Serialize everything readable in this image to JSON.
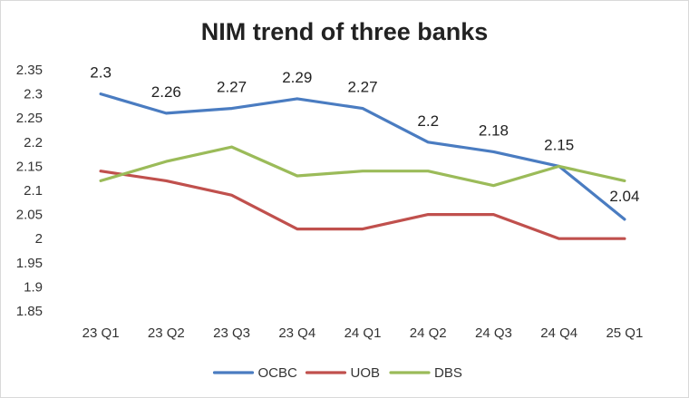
{
  "chart_data": {
    "type": "line",
    "title": "NIM trend of three banks",
    "categories": [
      "23 Q1",
      "23 Q2",
      "23 Q3",
      "23 Q4",
      "24 Q1",
      "24 Q2",
      "24 Q3",
      "24 Q4",
      "25 Q1"
    ],
    "ylim": [
      1.85,
      2.35
    ],
    "yticks": [
      "1.85",
      "1.9",
      "1.95",
      "2",
      "2.05",
      "2.1",
      "2.15",
      "2.2",
      "2.25",
      "2.3",
      "2.35"
    ],
    "grid": false,
    "legend": "bottom",
    "series": [
      {
        "name": "OCBC",
        "color": "#4a7cc1",
        "values": [
          2.3,
          2.26,
          2.27,
          2.29,
          2.27,
          2.2,
          2.18,
          2.15,
          2.04
        ],
        "labels": [
          "2.3",
          "2.26",
          "2.27",
          "2.29",
          "2.27",
          "2.2",
          "2.18",
          "2.15",
          "2.04"
        ]
      },
      {
        "name": "UOB",
        "color": "#c0504d",
        "values": [
          2.14,
          2.12,
          2.09,
          2.02,
          2.02,
          2.05,
          2.05,
          2.0,
          2.0
        ]
      },
      {
        "name": "DBS",
        "color": "#9bbb59",
        "values": [
          2.12,
          2.16,
          2.19,
          2.13,
          2.14,
          2.14,
          2.11,
          2.15,
          2.12
        ]
      }
    ]
  }
}
